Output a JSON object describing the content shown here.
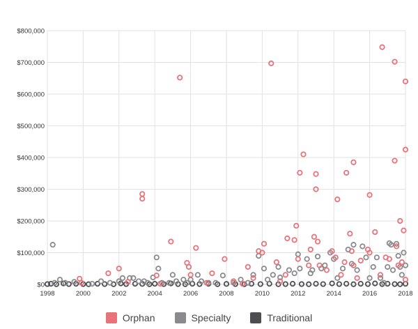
{
  "chart_data": {
    "type": "scatter",
    "xlim": [
      1998,
      2018
    ],
    "ylim": [
      0,
      800000
    ],
    "x_ticks": [
      "1998",
      "2000",
      "2002",
      "2004",
      "2006",
      "2008",
      "2010",
      "2012",
      "2014",
      "2016",
      "2018"
    ],
    "x_tick_values": [
      1998,
      2000,
      2002,
      2004,
      2006,
      2008,
      2010,
      2012,
      2014,
      2016,
      2018
    ],
    "y_ticks": [
      "$0",
      "$100,000",
      "$200,000",
      "$300,000",
      "$400,000",
      "$500,000",
      "$600,000",
      "$700,000",
      "$800,000"
    ],
    "y_tick_values": [
      0,
      100000,
      200000,
      300000,
      400000,
      500000,
      600000,
      700000,
      800000
    ],
    "grid": true,
    "legend_position": "bottom-center",
    "series": [
      {
        "name": "Orphan",
        "color": "#e8737b",
        "points": [
          [
            1999.8,
            18000
          ],
          [
            1999.9,
            5000
          ],
          [
            2001.4,
            35000
          ],
          [
            2002.0,
            50000
          ],
          [
            2002.5,
            8000
          ],
          [
            2003.3,
            285000
          ],
          [
            2003.3,
            270000
          ],
          [
            2004.1,
            28000
          ],
          [
            2004.3,
            2000
          ],
          [
            2004.9,
            135000
          ],
          [
            2005.4,
            652000
          ],
          [
            2005.8,
            68000
          ],
          [
            2005.9,
            55000
          ],
          [
            2006.0,
            30000
          ],
          [
            2006.3,
            115000
          ],
          [
            2006.9,
            5000
          ],
          [
            2007.2,
            35000
          ],
          [
            2007.9,
            80000
          ],
          [
            2008.4,
            10000
          ],
          [
            2008.9,
            2000
          ],
          [
            2009.2,
            55000
          ],
          [
            2009.5,
            20000
          ],
          [
            2009.8,
            105000
          ],
          [
            2010.0,
            100000
          ],
          [
            2010.1,
            128000
          ],
          [
            2010.5,
            697000
          ],
          [
            2010.8,
            70000
          ],
          [
            2011.0,
            10000
          ],
          [
            2011.3,
            30000
          ],
          [
            2011.4,
            145000
          ],
          [
            2011.8,
            140000
          ],
          [
            2011.9,
            185000
          ],
          [
            2012.0,
            80000
          ],
          [
            2012.1,
            352000
          ],
          [
            2012.3,
            410000
          ],
          [
            2012.6,
            60000
          ],
          [
            2012.7,
            110000
          ],
          [
            2012.9,
            150000
          ],
          [
            2013.0,
            348000
          ],
          [
            2013.0,
            300000
          ],
          [
            2013.1,
            135000
          ],
          [
            2013.2,
            60000
          ],
          [
            2013.6,
            45000
          ],
          [
            2013.9,
            105000
          ],
          [
            2014.1,
            85000
          ],
          [
            2014.2,
            268000
          ],
          [
            2014.4,
            30000
          ],
          [
            2014.6,
            70000
          ],
          [
            2014.7,
            352000
          ],
          [
            2014.9,
            160000
          ],
          [
            2015.0,
            105000
          ],
          [
            2015.1,
            385000
          ],
          [
            2015.1,
            60000
          ],
          [
            2015.3,
            20000
          ],
          [
            2015.5,
            75000
          ],
          [
            2015.9,
            110000
          ],
          [
            2016.0,
            282000
          ],
          [
            2016.0,
            100000
          ],
          [
            2016.3,
            165000
          ],
          [
            2016.6,
            30000
          ],
          [
            2016.7,
            748000
          ],
          [
            2016.9,
            85000
          ],
          [
            2017.1,
            80000
          ],
          [
            2017.4,
            702000
          ],
          [
            2017.4,
            390000
          ],
          [
            2017.5,
            120000
          ],
          [
            2017.6,
            60000
          ],
          [
            2017.7,
            200000
          ],
          [
            2017.8,
            70000
          ],
          [
            2017.9,
            170000
          ],
          [
            2018.0,
            640000
          ],
          [
            2018.0,
            425000
          ],
          [
            2018.0,
            15000
          ]
        ]
      },
      {
        "name": "Specialty",
        "color": "#8a8a8f",
        "points": [
          [
            1998.3,
            125000
          ],
          [
            1998.4,
            5000
          ],
          [
            1998.7,
            15000
          ],
          [
            1999.0,
            5000
          ],
          [
            1999.5,
            8000
          ],
          [
            2000.5,
            2000
          ],
          [
            2001.0,
            10000
          ],
          [
            2001.5,
            5000
          ],
          [
            2002.0,
            10000
          ],
          [
            2002.2,
            20000
          ],
          [
            2002.6,
            20000
          ],
          [
            2002.8,
            20000
          ],
          [
            2003.1,
            10000
          ],
          [
            2003.4,
            10000
          ],
          [
            2003.6,
            5000
          ],
          [
            2003.9,
            22000
          ],
          [
            2004.1,
            85000
          ],
          [
            2004.2,
            50000
          ],
          [
            2004.4,
            5000
          ],
          [
            2004.8,
            5000
          ],
          [
            2005.0,
            30000
          ],
          [
            2005.2,
            10000
          ],
          [
            2005.6,
            15000
          ],
          [
            2005.8,
            5000
          ],
          [
            2006.0,
            15000
          ],
          [
            2006.4,
            30000
          ],
          [
            2006.6,
            10000
          ],
          [
            2007.0,
            5000
          ],
          [
            2007.4,
            5000
          ],
          [
            2007.8,
            28000
          ],
          [
            2008.4,
            5000
          ],
          [
            2008.8,
            15000
          ],
          [
            2009.2,
            5000
          ],
          [
            2009.5,
            30000
          ],
          [
            2009.8,
            90000
          ],
          [
            2010.1,
            50000
          ],
          [
            2010.3,
            15000
          ],
          [
            2010.6,
            30000
          ],
          [
            2010.9,
            55000
          ],
          [
            2011.0,
            22000
          ],
          [
            2011.5,
            45000
          ],
          [
            2011.8,
            35000
          ],
          [
            2012.0,
            95000
          ],
          [
            2012.1,
            50000
          ],
          [
            2012.5,
            80000
          ],
          [
            2012.7,
            35000
          ],
          [
            2012.8,
            45000
          ],
          [
            2013.1,
            88000
          ],
          [
            2013.3,
            50000
          ],
          [
            2013.5,
            60000
          ],
          [
            2013.8,
            100000
          ],
          [
            2014.0,
            80000
          ],
          [
            2014.2,
            20000
          ],
          [
            2014.5,
            50000
          ],
          [
            2014.8,
            110000
          ],
          [
            2015.0,
            65000
          ],
          [
            2015.1,
            125000
          ],
          [
            2015.3,
            45000
          ],
          [
            2015.6,
            120000
          ],
          [
            2015.8,
            85000
          ],
          [
            2016.0,
            20000
          ],
          [
            2016.2,
            55000
          ],
          [
            2016.4,
            85000
          ],
          [
            2016.6,
            20000
          ],
          [
            2016.8,
            5000
          ],
          [
            2017.0,
            55000
          ],
          [
            2017.1,
            130000
          ],
          [
            2017.2,
            125000
          ],
          [
            2017.3,
            45000
          ],
          [
            2017.5,
            128000
          ],
          [
            2017.6,
            90000
          ],
          [
            2017.7,
            55000
          ],
          [
            2017.8,
            30000
          ],
          [
            2017.9,
            100000
          ],
          [
            2018.0,
            60000
          ]
        ]
      },
      {
        "name": "Traditional",
        "color": "#4d4d52",
        "points": [
          [
            1998.0,
            1000
          ],
          [
            1998.2,
            2000
          ],
          [
            1998.5,
            500
          ],
          [
            1998.9,
            3000
          ],
          [
            1999.2,
            1000
          ],
          [
            1999.6,
            2000
          ],
          [
            2000.0,
            1000
          ],
          [
            2000.3,
            500
          ],
          [
            2000.8,
            2000
          ],
          [
            2001.2,
            1000
          ],
          [
            2001.7,
            500
          ],
          [
            2002.1,
            3000
          ],
          [
            2002.4,
            1000
          ],
          [
            2002.9,
            2000
          ],
          [
            2003.3,
            1500
          ],
          [
            2003.7,
            500
          ],
          [
            2004.0,
            2000
          ],
          [
            2004.5,
            1000
          ],
          [
            2004.9,
            3000
          ],
          [
            2005.3,
            1000
          ],
          [
            2005.7,
            500
          ],
          [
            2006.1,
            2000
          ],
          [
            2006.5,
            1000
          ],
          [
            2007.0,
            2000
          ],
          [
            2007.5,
            500
          ],
          [
            2008.0,
            1500
          ],
          [
            2008.5,
            1000
          ],
          [
            2009.0,
            500
          ],
          [
            2009.4,
            2000
          ],
          [
            2009.9,
            1000
          ],
          [
            2010.4,
            2000
          ],
          [
            2010.9,
            500
          ],
          [
            2011.3,
            1000
          ],
          [
            2011.7,
            2000
          ],
          [
            2012.2,
            1000
          ],
          [
            2012.6,
            500
          ],
          [
            2013.0,
            2000
          ],
          [
            2013.4,
            1000
          ],
          [
            2013.9,
            3000
          ],
          [
            2014.3,
            1000
          ],
          [
            2014.7,
            2000
          ],
          [
            2015.1,
            500
          ],
          [
            2015.5,
            2000
          ],
          [
            2015.9,
            1000
          ],
          [
            2016.3,
            3000
          ],
          [
            2016.7,
            1000
          ],
          [
            2017.0,
            2000
          ],
          [
            2017.4,
            1000
          ],
          [
            2017.7,
            500
          ],
          [
            2018.0,
            2000
          ]
        ]
      }
    ]
  },
  "legend": {
    "items": [
      {
        "label": "Orphan",
        "color": "#e8737b"
      },
      {
        "label": "Specialty",
        "color": "#8a8a8f"
      },
      {
        "label": "Traditional",
        "color": "#4d4d52"
      }
    ]
  }
}
